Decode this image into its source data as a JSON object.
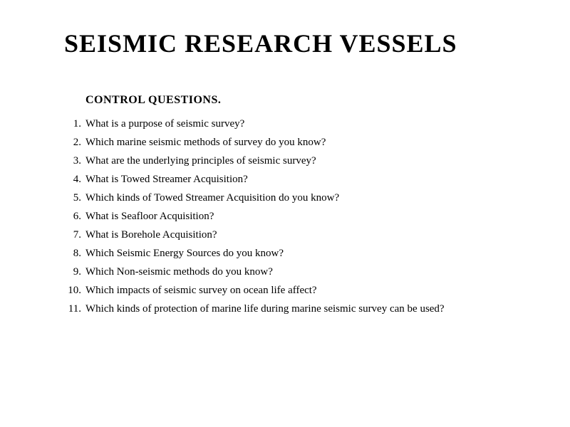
{
  "title": "SEISMIC RESEARCH VESSELS",
  "subtitle": "CONTROL QUESTIONS.",
  "questions": [
    "What is a purpose of seismic survey?",
    "Which marine seismic methods of survey do you know?",
    "What are the underlying principles of seismic survey?",
    "What is Towed Streamer Acquisition?",
    "Which kinds of Towed Streamer Acquisition do you know?",
    "What is Seafloor Acquisition?",
    "What is Borehole Acquisition?",
    "Which Seismic Energy Sources do you know?",
    "Which Non-seismic methods do you know?",
    "Which impacts of seismic survey on ocean life affect?",
    "Which kinds of protection of marine life during marine seismic survey can be used?"
  ],
  "styling": {
    "background_color": "#ffffff",
    "text_color": "#000000",
    "title_fontsize": 36,
    "title_fontweight": "bold",
    "subtitle_fontsize": 16,
    "subtitle_fontweight": "bold",
    "question_fontsize": 15,
    "font_family": "Times New Roman"
  }
}
